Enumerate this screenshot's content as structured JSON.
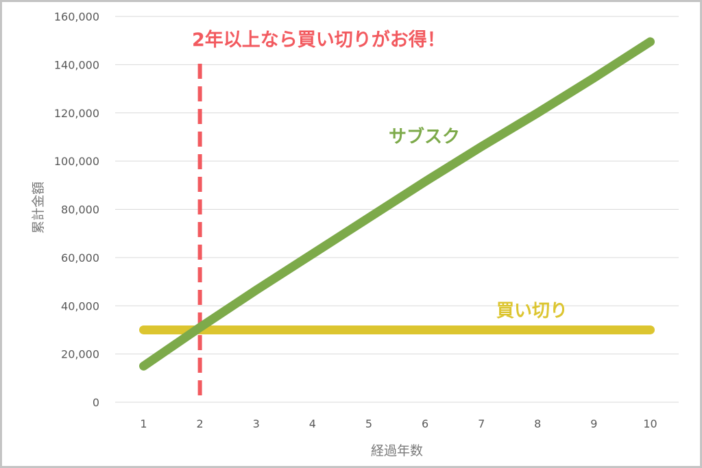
{
  "chart_data": {
    "type": "line",
    "title": "",
    "xlabel": "経過年数",
    "ylabel": "累計金額",
    "x": [
      1,
      2,
      3,
      4,
      5,
      6,
      7,
      8,
      9,
      10
    ],
    "ylim": [
      0,
      160000
    ],
    "yticks": [
      0,
      20000,
      40000,
      60000,
      80000,
      100000,
      120000,
      140000,
      160000
    ],
    "ytick_labels": [
      "0",
      "20,000",
      "40,000",
      "60,000",
      "80,000",
      "100,000",
      "120,000",
      "140,000",
      "160,000"
    ],
    "xtick_labels": [
      "1",
      "2",
      "3",
      "4",
      "5",
      "6",
      "7",
      "8",
      "9",
      "10"
    ],
    "grid": "horizontal",
    "series": [
      {
        "name": "サブスク",
        "color": "#7daa4a",
        "values": [
          15000,
          31000,
          46500,
          61500,
          76500,
          91500,
          106000,
          120000,
          134500,
          149500
        ]
      },
      {
        "name": "買い切り",
        "color": "#dcc530",
        "values": [
          30000,
          30000,
          30000,
          30000,
          30000,
          30000,
          30000,
          30000,
          30000,
          30000
        ]
      }
    ],
    "reference_line": {
      "axis": "x",
      "value": 2,
      "style": "dashed",
      "color": "#f25a5f"
    },
    "annotations": [
      {
        "text": "2年以上なら買い切りがお得！",
        "color": "#f25a5f"
      }
    ]
  }
}
